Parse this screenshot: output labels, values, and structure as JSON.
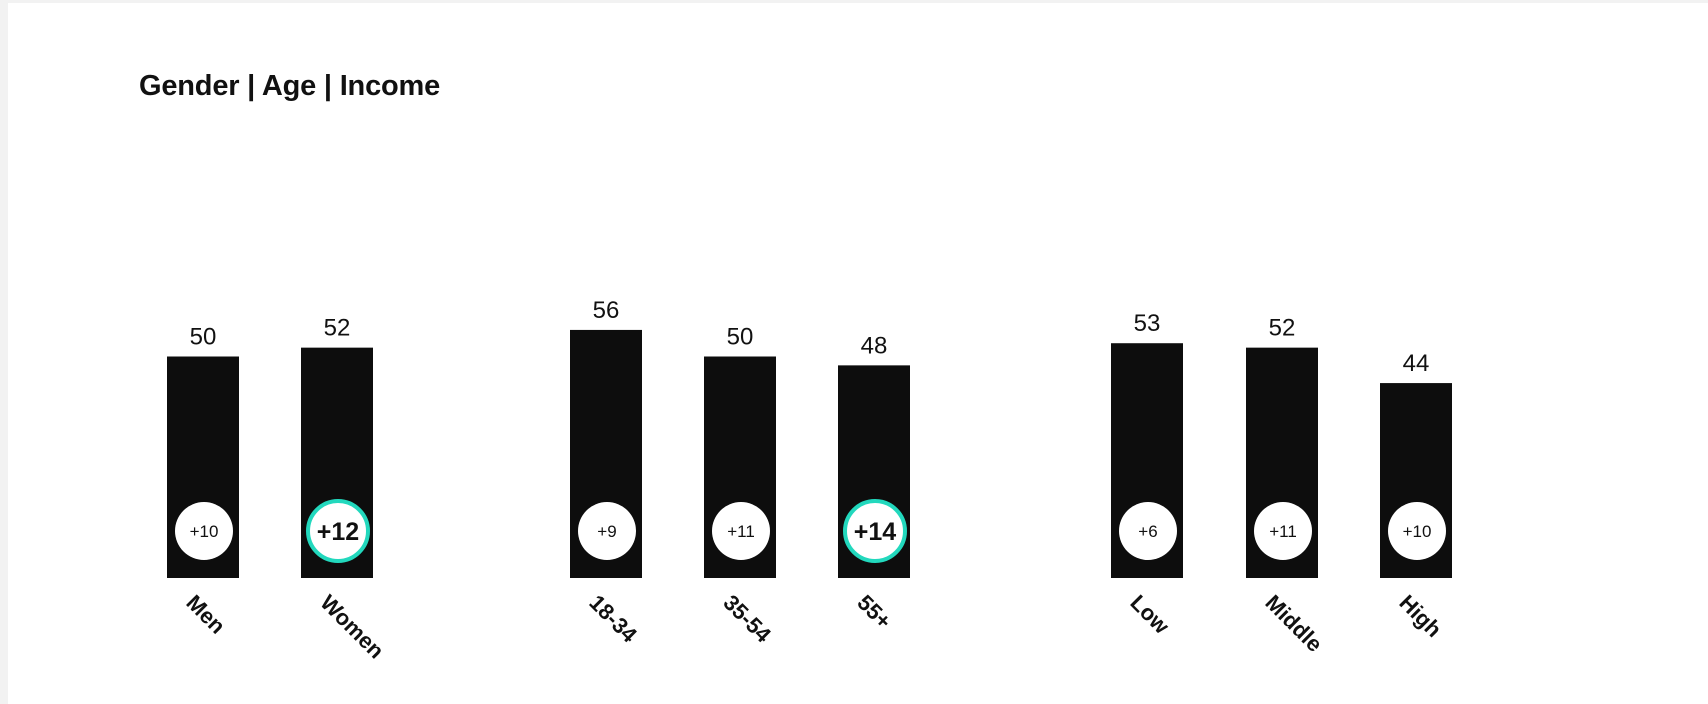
{
  "title": "Gender | Age | Income",
  "colors": {
    "bar": "#0d0d0d",
    "badge_fill": "#ffffff",
    "badge_highlight": "#22d8bd",
    "text": "#111111"
  },
  "chart_data": {
    "type": "bar",
    "title": "Gender | Age | Income",
    "xlabel": "",
    "ylabel": "",
    "ylim": [
      0,
      60
    ],
    "grid": false,
    "legend": "none",
    "groups": [
      {
        "name": "Gender",
        "categories": [
          "Men",
          "Women"
        ],
        "values": [
          50,
          52
        ],
        "deltas": [
          "+10",
          "+12"
        ],
        "highlighted": [
          false,
          true
        ]
      },
      {
        "name": "Age",
        "categories": [
          "18-34",
          "35-54",
          "55+"
        ],
        "values": [
          56,
          50,
          48
        ],
        "deltas": [
          "+9",
          "+11",
          "+14"
        ],
        "highlighted": [
          false,
          false,
          true
        ]
      },
      {
        "name": "Income",
        "categories": [
          "Low",
          "Middle",
          "High"
        ],
        "values": [
          53,
          52,
          44
        ],
        "deltas": [
          "+6",
          "+11",
          "+10"
        ],
        "highlighted": [
          false,
          false,
          false
        ]
      }
    ]
  }
}
